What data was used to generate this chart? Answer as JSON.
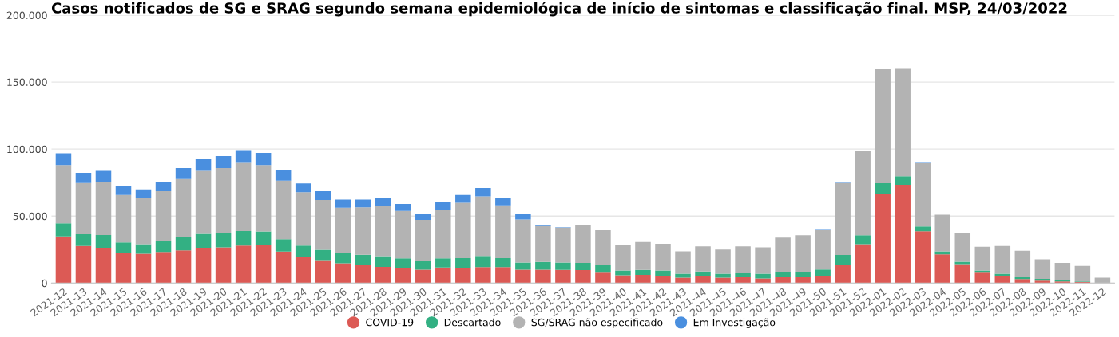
{
  "chart_data": {
    "type": "bar",
    "stacked": true,
    "title": "Casos notificados de SG e SRAG segundo semana epidemiológica de início de sintomas e classificação final. MSP, 24/03/2022",
    "categories": [
      "2021-12",
      "2021-13",
      "2021-14",
      "2021-15",
      "2021-16",
      "2021-17",
      "2021-18",
      "2021-19",
      "2021-20",
      "2021-21",
      "2021-22",
      "2021-23",
      "2021-24",
      "2021-25",
      "2021-26",
      "2021-27",
      "2021-28",
      "2021-29",
      "2021-30",
      "2021-31",
      "2021-32",
      "2021-33",
      "2021-34",
      "2021-35",
      "2021-36",
      "2021-37",
      "2021-38",
      "2021-39",
      "2021-40",
      "2021-41",
      "2021-42",
      "2021-43",
      "2021-44",
      "2021-45",
      "2021-46",
      "2021-47",
      "2021-48",
      "2021-49",
      "2021-50",
      "2021-51",
      "2021-52",
      "2022-01",
      "2022-02",
      "2022-03",
      "2022-04",
      "2022-05",
      "2022-06",
      "2022-07",
      "2022-08",
      "2022-09",
      "2022-10",
      "2022-11",
      "2022-12"
    ],
    "series": [
      {
        "name": "COVID-19",
        "color": "#dc5a55",
        "values": [
          34800,
          27700,
          26400,
          22400,
          21900,
          23200,
          24500,
          26400,
          26700,
          28000,
          28500,
          23500,
          19800,
          17200,
          14800,
          13700,
          12100,
          11100,
          10000,
          11600,
          11100,
          11900,
          11900,
          10000,
          10000,
          9900,
          9700,
          7800,
          5900,
          6200,
          5600,
          4000,
          5100,
          4000,
          4300,
          3500,
          4300,
          4300,
          5400,
          13700,
          29000,
          66400,
          73400,
          38700,
          21500,
          14200,
          7800,
          5100,
          3000,
          1900,
          1300,
          800,
          0
        ]
      },
      {
        "name": "Descartado",
        "color": "#33b083",
        "values": [
          9800,
          8700,
          9500,
          7900,
          7100,
          7900,
          9800,
          10300,
          10500,
          10800,
          10000,
          9200,
          8200,
          7600,
          7400,
          7400,
          8000,
          7400,
          6400,
          6900,
          7600,
          8400,
          6800,
          5300,
          5800,
          5400,
          5400,
          5600,
          3500,
          3700,
          3800,
          3000,
          3500,
          3000,
          3000,
          3500,
          3800,
          4000,
          4800,
          7300,
          6800,
          8100,
          6400,
          3500,
          2200,
          1700,
          1600,
          1900,
          1300,
          1300,
          1100,
          500,
          0
        ]
      },
      {
        "name": "SG/SRAG não especificado",
        "color": "#b3b3b3",
        "values": [
          43500,
          38300,
          39800,
          35400,
          34300,
          37500,
          43300,
          47000,
          48600,
          51500,
          49600,
          43800,
          39800,
          37200,
          34000,
          35400,
          37200,
          35300,
          30800,
          36400,
          41200,
          44400,
          39400,
          32200,
          26700,
          26100,
          28200,
          26100,
          19100,
          20700,
          19900,
          16700,
          18800,
          18000,
          20100,
          19600,
          25800,
          27500,
          29300,
          53700,
          63100,
          85200,
          80700,
          47800,
          27400,
          21500,
          17700,
          20700,
          19900,
          14500,
          12700,
          11600,
          4000
        ]
      },
      {
        "name": "Em Investigação",
        "color": "#4a8fdf",
        "values": [
          8800,
          7600,
          8000,
          6600,
          6600,
          7100,
          8200,
          8900,
          8900,
          8900,
          9000,
          7900,
          6600,
          6600,
          6100,
          5800,
          6000,
          5300,
          4800,
          5500,
          5800,
          6300,
          5500,
          4000,
          800,
          300,
          0,
          0,
          0,
          0,
          0,
          0,
          0,
          0,
          0,
          0,
          0,
          0,
          300,
          300,
          null,
          500,
          null,
          300,
          0,
          0,
          0,
          0,
          0,
          0,
          0,
          0,
          0
        ]
      }
    ],
    "ylim": [
      0,
      200000
    ],
    "yticks": [
      0,
      {
        "value": 50000,
        "label": "50.000"
      },
      {
        "value": 100000,
        "label": "100.000"
      },
      {
        "value": 150000,
        "label": "150.000"
      },
      {
        "value": 200000,
        "label": "200.000"
      }
    ],
    "grid": "y",
    "legend": "bottom"
  }
}
